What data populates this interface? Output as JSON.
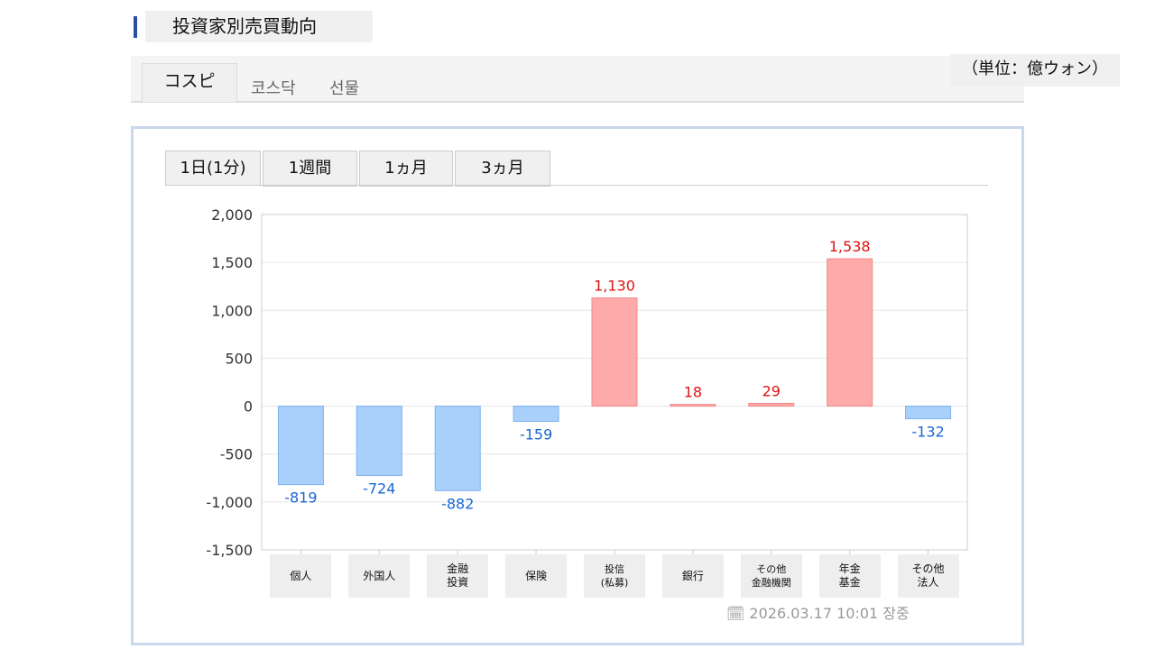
{
  "title": "投資家別売買動向",
  "unit": "（単位：億ウォン）",
  "market_tabs": [
    "コスピ",
    "코스닥",
    "선물"
  ],
  "period_tabs": [
    "1日(1分)",
    "1週間",
    "1ヵ月",
    "3ヵ月"
  ],
  "timestamp": "2026.03.17 10:01 장중",
  "colors": {
    "positive": "#ffaaaa",
    "positive_label": "#e01010",
    "negative": "#a9d0fb",
    "negative_label": "#1a66d6"
  },
  "chart_data": {
    "type": "bar",
    "categories": [
      "個人",
      "外国人",
      "金融\n投資",
      "保険",
      "投信\n(私募)",
      "銀行",
      "その他\n金融機関",
      "年金\n基金",
      "その他\n法人"
    ],
    "values": [
      -819,
      -724,
      -882,
      -159,
      1130,
      18,
      29,
      1538,
      -132
    ],
    "value_labels": [
      "-819",
      "-724",
      "-882",
      "-159",
      "1,130",
      "18",
      "29",
      "1,538",
      "-132"
    ],
    "ylim": [
      -1500,
      2000
    ],
    "yticks": [
      2000,
      1500,
      1000,
      500,
      0,
      -500,
      -1000,
      -1500
    ],
    "ytick_labels": [
      "2,000",
      "1,500",
      "1,000",
      "500",
      "0",
      "-500",
      "-1,000",
      "-1,500"
    ],
    "grid": true
  }
}
